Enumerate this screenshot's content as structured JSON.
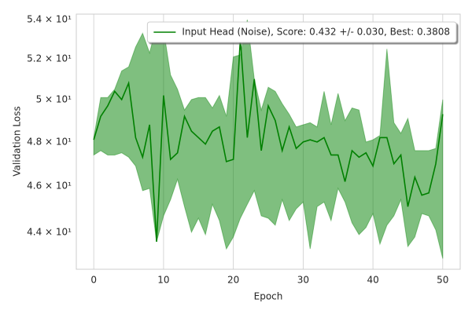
{
  "chart_data": {
    "type": "line",
    "x_label": "Epoch",
    "y_label": "Validation Loss",
    "x": [
      0,
      1,
      2,
      3,
      4,
      5,
      6,
      7,
      8,
      9,
      10,
      11,
      12,
      13,
      14,
      15,
      16,
      17,
      18,
      19,
      20,
      21,
      22,
      23,
      24,
      25,
      26,
      27,
      28,
      29,
      30,
      31,
      32,
      33,
      34,
      35,
      36,
      37,
      38,
      39,
      40,
      41,
      42,
      43,
      44,
      45,
      46,
      47,
      48,
      49,
      50
    ],
    "series": [
      {
        "name": "Input Head (Noise), Score: 0.432 +/- 0.030,  Best: 0.3808",
        "color": "#008000",
        "values": [
          48.1,
          49.2,
          49.7,
          50.4,
          50.0,
          50.8,
          48.2,
          47.3,
          48.8,
          43.6,
          50.2,
          47.2,
          47.5,
          49.2,
          48.5,
          48.2,
          47.9,
          48.5,
          48.7,
          47.1,
          47.2,
          53.0,
          48.2,
          51.0,
          47.6,
          49.7,
          49.0,
          47.6,
          48.7,
          47.7,
          48.0,
          48.1,
          48.0,
          48.2,
          47.4,
          47.4,
          46.2,
          47.6,
          47.3,
          47.5,
          46.9,
          48.2,
          48.2,
          47.0,
          47.4,
          45.1,
          46.4,
          45.6,
          45.7,
          47.0,
          49.3
        ],
        "upper": [
          48.2,
          50.1,
          50.1,
          50.5,
          51.4,
          51.6,
          52.6,
          53.3,
          52.3,
          53.7,
          53.5,
          51.2,
          50.5,
          49.5,
          50.0,
          50.1,
          50.1,
          49.6,
          50.2,
          49.2,
          52.1,
          52.2,
          54.0,
          51.0,
          49.5,
          50.6,
          50.4,
          49.8,
          49.3,
          48.7,
          48.8,
          48.9,
          48.7,
          50.4,
          48.8,
          50.3,
          49.0,
          49.6,
          49.5,
          48.0,
          48.1,
          48.3,
          52.5,
          48.9,
          48.4,
          49.1,
          47.6,
          47.6,
          47.6,
          47.7,
          50.0
        ],
        "lower": [
          47.4,
          47.6,
          47.4,
          47.4,
          47.5,
          47.3,
          46.9,
          45.8,
          45.9,
          43.6,
          44.7,
          45.4,
          46.3,
          45.1,
          44.0,
          44.6,
          43.9,
          45.2,
          44.5,
          43.3,
          43.8,
          44.6,
          45.2,
          45.8,
          44.7,
          44.6,
          44.3,
          45.4,
          44.5,
          45.0,
          45.3,
          43.3,
          45.1,
          45.3,
          44.5,
          45.9,
          45.3,
          44.4,
          43.9,
          44.2,
          44.8,
          43.5,
          44.3,
          44.7,
          45.4,
          43.4,
          43.8,
          44.8,
          44.7,
          44.1,
          42.9
        ]
      }
    ],
    "xlim": [
      -2.5,
      52.5
    ],
    "xticks": [
      0,
      10,
      20,
      30,
      40,
      50
    ],
    "ylim": [
      42.46,
      54.29
    ],
    "y_scale": "log",
    "yticks": [
      {
        "value": 44,
        "label": "4.4 × 10¹"
      },
      {
        "value": 46,
        "label": "4.6 × 10¹"
      },
      {
        "value": 48,
        "label": "4.8 × 10¹"
      },
      {
        "value": 50,
        "label": "5 × 10¹"
      },
      {
        "value": 52,
        "label": "5.2 × 10¹"
      },
      {
        "value": 54,
        "label": "5.4 × 10¹"
      }
    ],
    "x_grid": true,
    "y_grid": false,
    "legend": "upper right"
  }
}
